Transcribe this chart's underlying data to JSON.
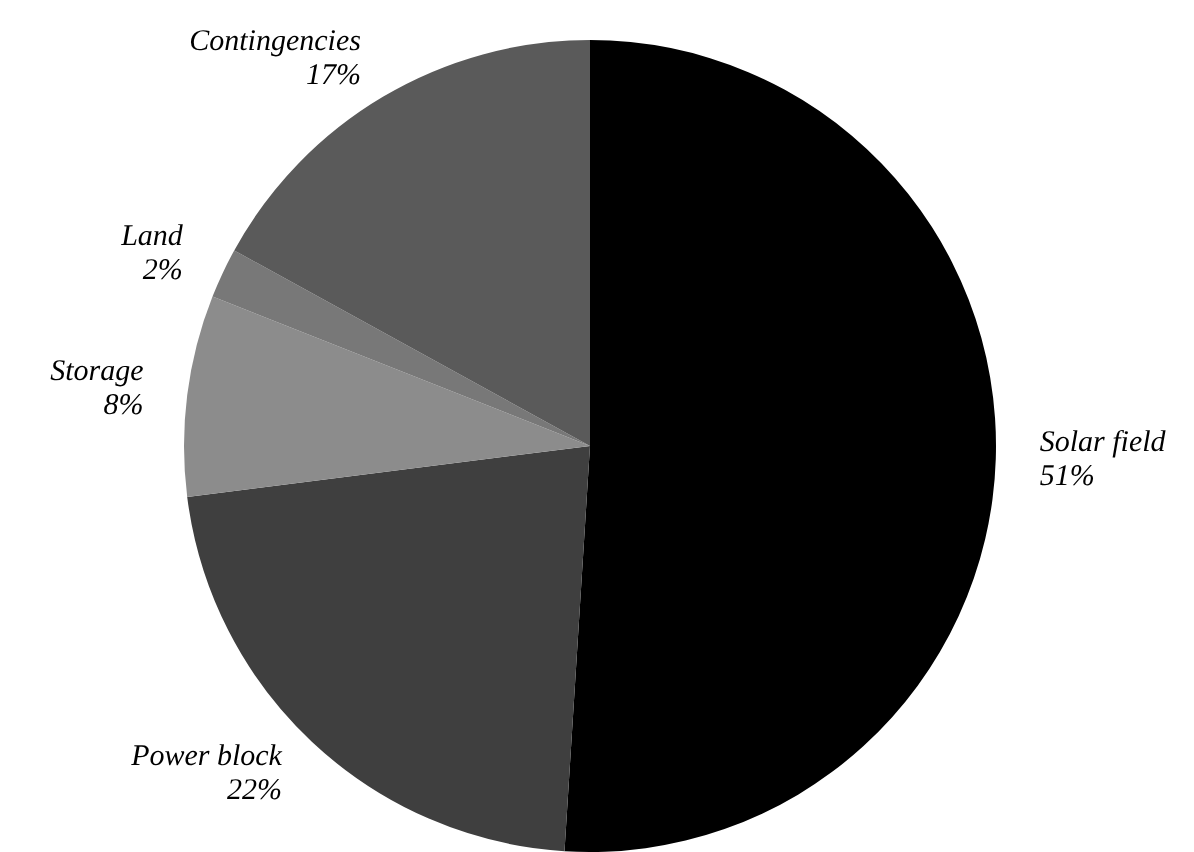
{
  "chart_data": {
    "type": "pie",
    "categories": [
      "Solar field",
      "Power block",
      "Storage",
      "Land",
      "Contingencies"
    ],
    "values": [
      51,
      22,
      8,
      2,
      17
    ],
    "value_labels": [
      "51%",
      "22%",
      "8%",
      "2%",
      "17%"
    ],
    "colors": [
      "#000000",
      "#3f3f3f",
      "#8c8c8c",
      "#787878",
      "#5a5a5a"
    ],
    "legend": false
  }
}
